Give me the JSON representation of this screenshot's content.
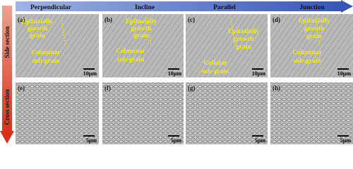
{
  "header": {
    "arrow_labels": [
      "Perpendicular",
      "Incline",
      "Parallel",
      "Junction"
    ]
  },
  "side_labels": [
    "Side section",
    "Cross section"
  ],
  "panels": [
    {
      "label": "(a)",
      "scale_bar": "10μm",
      "annotations": [
        {
          "lines": [
            "Epitaxially",
            "growth",
            "grain"
          ]
        },
        {
          "lines": [
            "Columnar",
            "sub-grain"
          ]
        }
      ]
    },
    {
      "label": "(b)",
      "scale_bar": "10μm",
      "annotations": [
        {
          "lines": [
            "Epitaxially",
            "growth",
            "grain"
          ]
        },
        {
          "lines": [
            "Columnar",
            "sub-grain"
          ]
        }
      ]
    },
    {
      "label": "(c)",
      "scale_bar": "10μm",
      "annotations": [
        {
          "lines": [
            "Epitaxially",
            "growth",
            "grain"
          ]
        },
        {
          "lines": [
            "Cellular",
            "sub-grain"
          ]
        }
      ]
    },
    {
      "label": "(d)",
      "scale_bar": "10μm",
      "annotations": [
        {
          "lines": [
            "Epitaxially",
            "growth",
            "grain"
          ]
        },
        {
          "lines": [
            "Columnar",
            "sub-grain"
          ]
        }
      ]
    },
    {
      "label": "(e)",
      "scale_bar": "5μm",
      "annotations": []
    },
    {
      "label": "(f)",
      "scale_bar": "5μm",
      "annotations": []
    },
    {
      "label": "(g)",
      "scale_bar": "5μm",
      "annotations": []
    },
    {
      "label": "(h)",
      "scale_bar": "5μm",
      "annotations": []
    }
  ]
}
